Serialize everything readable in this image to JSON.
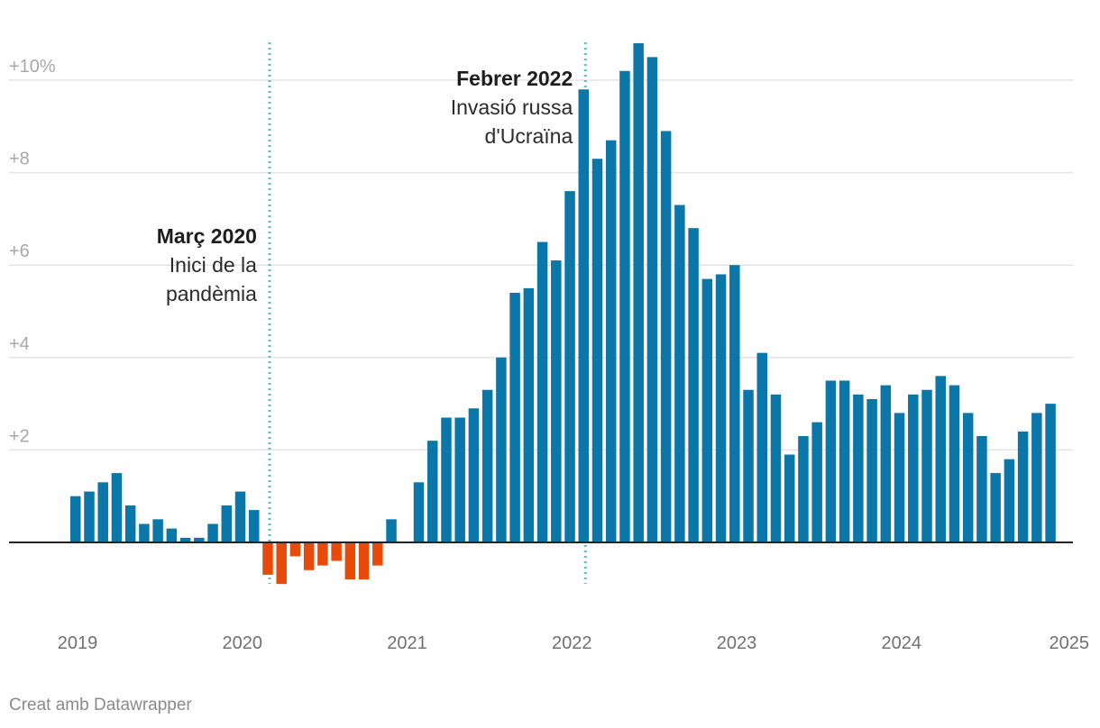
{
  "chart_data": {
    "type": "bar",
    "title": "",
    "xlabel": "",
    "ylabel": "",
    "ylim": [
      -1,
      10.8
    ],
    "y_ticks": [
      {
        "value": 10,
        "label": "+10%"
      },
      {
        "value": 8,
        "label": "+8"
      },
      {
        "value": 6,
        "label": "+6"
      },
      {
        "value": 4,
        "label": "+4"
      },
      {
        "value": 2,
        "label": "+2"
      }
    ],
    "x_ticks": [
      "2019",
      "2020",
      "2021",
      "2022",
      "2023",
      "2024",
      "2025"
    ],
    "first_month": "2019-01",
    "months": [
      "2019-01",
      "2019-02",
      "2019-03",
      "2019-04",
      "2019-05",
      "2019-06",
      "2019-07",
      "2019-08",
      "2019-09",
      "2019-10",
      "2019-11",
      "2019-12",
      "2020-01",
      "2020-02",
      "2020-03",
      "2020-04",
      "2020-05",
      "2020-06",
      "2020-07",
      "2020-08",
      "2020-09",
      "2020-10",
      "2020-11",
      "2020-12",
      "2021-01",
      "2021-02",
      "2021-03",
      "2021-04",
      "2021-05",
      "2021-06",
      "2021-07",
      "2021-08",
      "2021-09",
      "2021-10",
      "2021-11",
      "2021-12",
      "2022-01",
      "2022-02",
      "2022-03",
      "2022-04",
      "2022-05",
      "2022-06",
      "2022-07",
      "2022-08",
      "2022-09",
      "2022-10",
      "2022-11",
      "2022-12",
      "2023-01",
      "2023-02",
      "2023-03",
      "2023-04",
      "2023-05",
      "2023-06",
      "2023-07",
      "2023-08",
      "2023-09",
      "2023-10",
      "2023-11",
      "2023-12",
      "2024-01",
      "2024-02",
      "2024-03",
      "2024-04",
      "2024-05",
      "2024-06",
      "2024-07",
      "2024-08",
      "2024-09",
      "2024-10",
      "2024-11",
      "2024-12"
    ],
    "values": [
      1.0,
      1.1,
      1.3,
      1.5,
      0.8,
      0.4,
      0.5,
      0.3,
      0.1,
      0.1,
      0.4,
      0.8,
      1.1,
      0.7,
      -0.7,
      -0.9,
      -0.3,
      -0.6,
      -0.5,
      -0.4,
      -0.8,
      -0.8,
      -0.5,
      0.5,
      0.0,
      1.3,
      2.2,
      2.7,
      2.7,
      2.9,
      3.3,
      4.0,
      5.4,
      5.5,
      6.5,
      6.1,
      7.6,
      9.8,
      8.3,
      8.7,
      10.2,
      10.8,
      10.5,
      8.9,
      7.3,
      6.8,
      5.7,
      5.8,
      6.0,
      3.3,
      4.1,
      3.2,
      1.9,
      2.3,
      2.6,
      3.5,
      3.5,
      3.2,
      3.1,
      3.4,
      2.8,
      3.2,
      3.3,
      3.6,
      3.4,
      2.8,
      2.3,
      1.5,
      1.8,
      2.4,
      2.8,
      3.0
    ],
    "colors": {
      "positive": "#0a77a8",
      "negative": "#e84a0c",
      "marker": "#5ec5a7",
      "grid": "#e3e3e3",
      "baseline": "#222222"
    },
    "markers": [
      {
        "month": "2020-03",
        "title": "Març 2020",
        "lines": [
          "Inici de la",
          "pandèmia"
        ]
      },
      {
        "month": "2022-02",
        "title": "Febrer 2022",
        "lines": [
          "Invasió russa",
          "d'Ucraïna"
        ]
      }
    ],
    "grid": true,
    "legend": "none"
  },
  "footer": {
    "credit": "Creat amb Datawrapper"
  }
}
